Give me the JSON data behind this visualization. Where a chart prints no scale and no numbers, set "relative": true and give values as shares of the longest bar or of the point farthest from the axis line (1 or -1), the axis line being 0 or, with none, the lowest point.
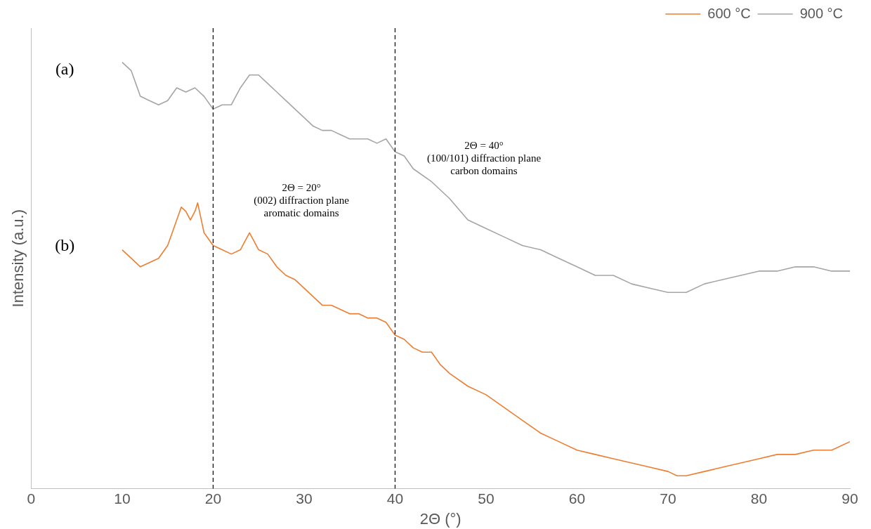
{
  "chart_data": {
    "type": "line",
    "relative": true,
    "xlabel": "2Θ (°)",
    "ylabel": "Intensity (a.u.)",
    "xlim": [
      0,
      90
    ],
    "xticks": [
      0,
      10,
      20,
      30,
      40,
      50,
      60,
      70,
      80,
      90
    ],
    "legend": "top right",
    "grid": false,
    "marker": "none",
    "line_style": "solid",
    "series": [
      {
        "name": "600 °C",
        "color": "#ed7d31",
        "x": [
          10,
          11,
          12,
          13,
          14,
          15,
          16,
          16.5,
          17,
          17.5,
          18,
          18.3,
          18.7,
          19,
          20,
          21,
          22,
          23,
          23.5,
          24,
          24.5,
          25,
          26,
          27,
          28,
          29,
          30,
          31,
          32,
          33,
          34,
          35,
          36,
          37,
          38,
          39,
          40,
          41,
          42,
          43,
          44,
          45,
          46,
          48,
          50,
          52,
          54,
          56,
          58,
          60,
          62,
          64,
          66,
          68,
          70,
          71,
          72,
          74,
          76,
          78,
          80,
          82,
          84,
          86,
          88,
          90
        ],
        "values": [
          0.56,
          0.54,
          0.52,
          0.53,
          0.54,
          0.57,
          0.63,
          0.66,
          0.65,
          0.63,
          0.65,
          0.67,
          0.63,
          0.6,
          0.57,
          0.56,
          0.55,
          0.56,
          0.58,
          0.6,
          0.58,
          0.56,
          0.55,
          0.52,
          0.5,
          0.49,
          0.47,
          0.45,
          0.43,
          0.43,
          0.42,
          0.41,
          0.41,
          0.4,
          0.4,
          0.39,
          0.36,
          0.35,
          0.33,
          0.32,
          0.32,
          0.29,
          0.27,
          0.24,
          0.22,
          0.19,
          0.16,
          0.13,
          0.11,
          0.09,
          0.08,
          0.07,
          0.06,
          0.05,
          0.04,
          0.03,
          0.03,
          0.04,
          0.05,
          0.06,
          0.07,
          0.08,
          0.08,
          0.09,
          0.09,
          0.11
        ]
      },
      {
        "name": "900 °C",
        "color": "#a5a5a5",
        "x": [
          10,
          10.5,
          11,
          11.5,
          12,
          13,
          14,
          15,
          16,
          17,
          18,
          19,
          20,
          21,
          22,
          23,
          24,
          25,
          26,
          27,
          28,
          29,
          30,
          31,
          32,
          33,
          34,
          35,
          36,
          37,
          38,
          39,
          40,
          41,
          42,
          44,
          46,
          48,
          50,
          52,
          54,
          56,
          58,
          60,
          62,
          64,
          66,
          68,
          70,
          72,
          74,
          76,
          78,
          80,
          82,
          84,
          86,
          88,
          90
        ],
        "values": [
          1.0,
          0.99,
          0.98,
          0.95,
          0.92,
          0.91,
          0.9,
          0.91,
          0.94,
          0.93,
          0.94,
          0.92,
          0.89,
          0.9,
          0.9,
          0.94,
          0.97,
          0.97,
          0.95,
          0.93,
          0.91,
          0.89,
          0.87,
          0.85,
          0.84,
          0.84,
          0.83,
          0.82,
          0.82,
          0.82,
          0.81,
          0.82,
          0.79,
          0.78,
          0.75,
          0.72,
          0.68,
          0.63,
          0.61,
          0.59,
          0.57,
          0.56,
          0.54,
          0.52,
          0.5,
          0.5,
          0.48,
          0.47,
          0.46,
          0.46,
          0.48,
          0.49,
          0.5,
          0.51,
          0.51,
          0.52,
          0.52,
          0.51,
          0.51
        ]
      }
    ],
    "ref_lines": [
      {
        "axis": "x",
        "value": 20,
        "color": "#000000",
        "line_style": "dashed"
      },
      {
        "axis": "x",
        "value": 40,
        "color": "#000000",
        "line_style": "dashed"
      }
    ],
    "annotations": [
      "(a)",
      "(b)",
      "2Θ = 20°\n(002) diffraction plane\naromatic domains",
      "2Θ = 40°\n(100/101) diffraction plane\ncarbon domains"
    ]
  }
}
